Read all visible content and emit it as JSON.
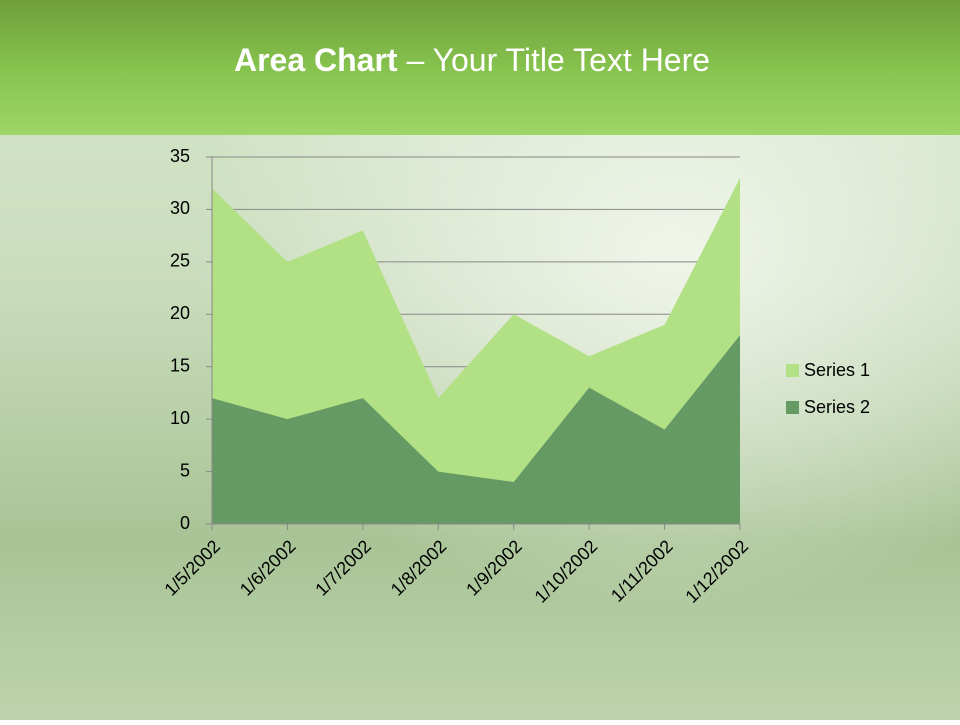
{
  "chart_data": {
    "type": "area",
    "title_bold": "Area Chart",
    "title": "– Your Title Text Here",
    "categories": [
      "1/5/2002",
      "1/6/2002",
      "1/7/2002",
      "1/8/2002",
      "1/9/2002",
      "1/10/2002",
      "1/11/2002",
      "1/12/2002"
    ],
    "series": [
      {
        "name": "Series 1",
        "color": "#b2e084",
        "values": [
          32,
          25,
          28,
          12,
          20,
          16,
          19,
          33
        ]
      },
      {
        "name": "Series 2",
        "color": "#669a64",
        "values": [
          12,
          10,
          12,
          5,
          4,
          13,
          9,
          18
        ]
      }
    ],
    "ylim": [
      0,
      35
    ],
    "yticks": [
      0,
      5,
      10,
      15,
      20,
      25,
      30,
      35
    ],
    "grid": true,
    "legend": "right"
  }
}
